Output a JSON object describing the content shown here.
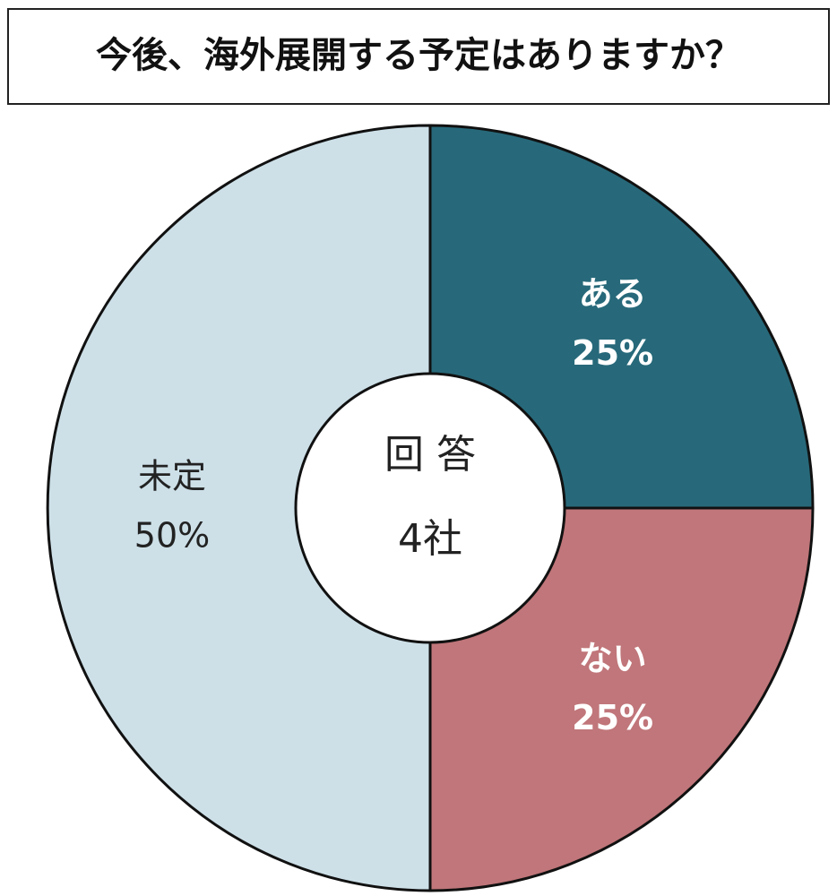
{
  "chart_data": {
    "type": "pie",
    "title": "今後、海外展開する予定はありますか？",
    "categories": [
      "ある",
      "ない",
      "未定"
    ],
    "values": [
      25,
      25,
      50
    ],
    "value_labels": [
      "25%",
      "25%",
      "50%"
    ],
    "colors": [
      "#27697a",
      "#c0767a",
      "#cde0e8"
    ],
    "center_title": "回 答",
    "center_subtitle": "4社"
  }
}
